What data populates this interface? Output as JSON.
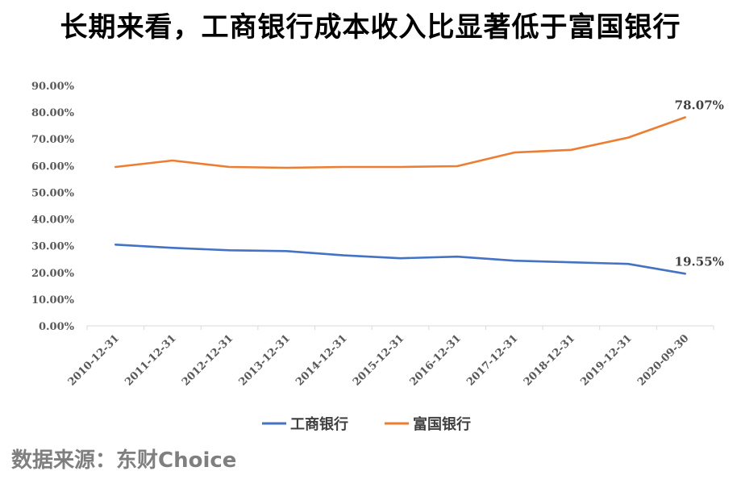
{
  "title": "长期来看，工商银行成本收入比显著低于富国银行",
  "source": "数据来源：东财Choice",
  "chart_data": {
    "type": "line",
    "title": "长期来看，工商银行成本收入比显著低于富国银行",
    "xlabel": "",
    "ylabel": "",
    "categories": [
      "2010-12-31",
      "2011-12-31",
      "2012-12-31",
      "2013-12-31",
      "2014-12-31",
      "2015-12-31",
      "2016-12-31",
      "2017-12-31",
      "2018-12-31",
      "2019-12-31",
      "2020-09-30"
    ],
    "ylim": [
      0,
      90
    ],
    "yticks": [
      "0.00%",
      "10.00%",
      "20.00%",
      "30.00%",
      "40.00%",
      "50.00%",
      "60.00%",
      "70.00%",
      "80.00%",
      "90.00%"
    ],
    "grid": false,
    "legend": "bottom",
    "series": [
      {
        "name": "工商银行",
        "color": "#4472C4",
        "values": [
          30.4,
          29.2,
          28.3,
          28.0,
          26.4,
          25.3,
          25.9,
          24.4,
          23.8,
          23.2,
          19.55
        ],
        "end_label": "19.55%"
      },
      {
        "name": "富国银行",
        "color": "#ED7D31",
        "values": [
          59.5,
          61.9,
          59.5,
          59.2,
          59.5,
          59.5,
          59.8,
          64.9,
          65.9,
          70.5,
          78.07
        ],
        "end_label": "78.07%"
      }
    ]
  }
}
